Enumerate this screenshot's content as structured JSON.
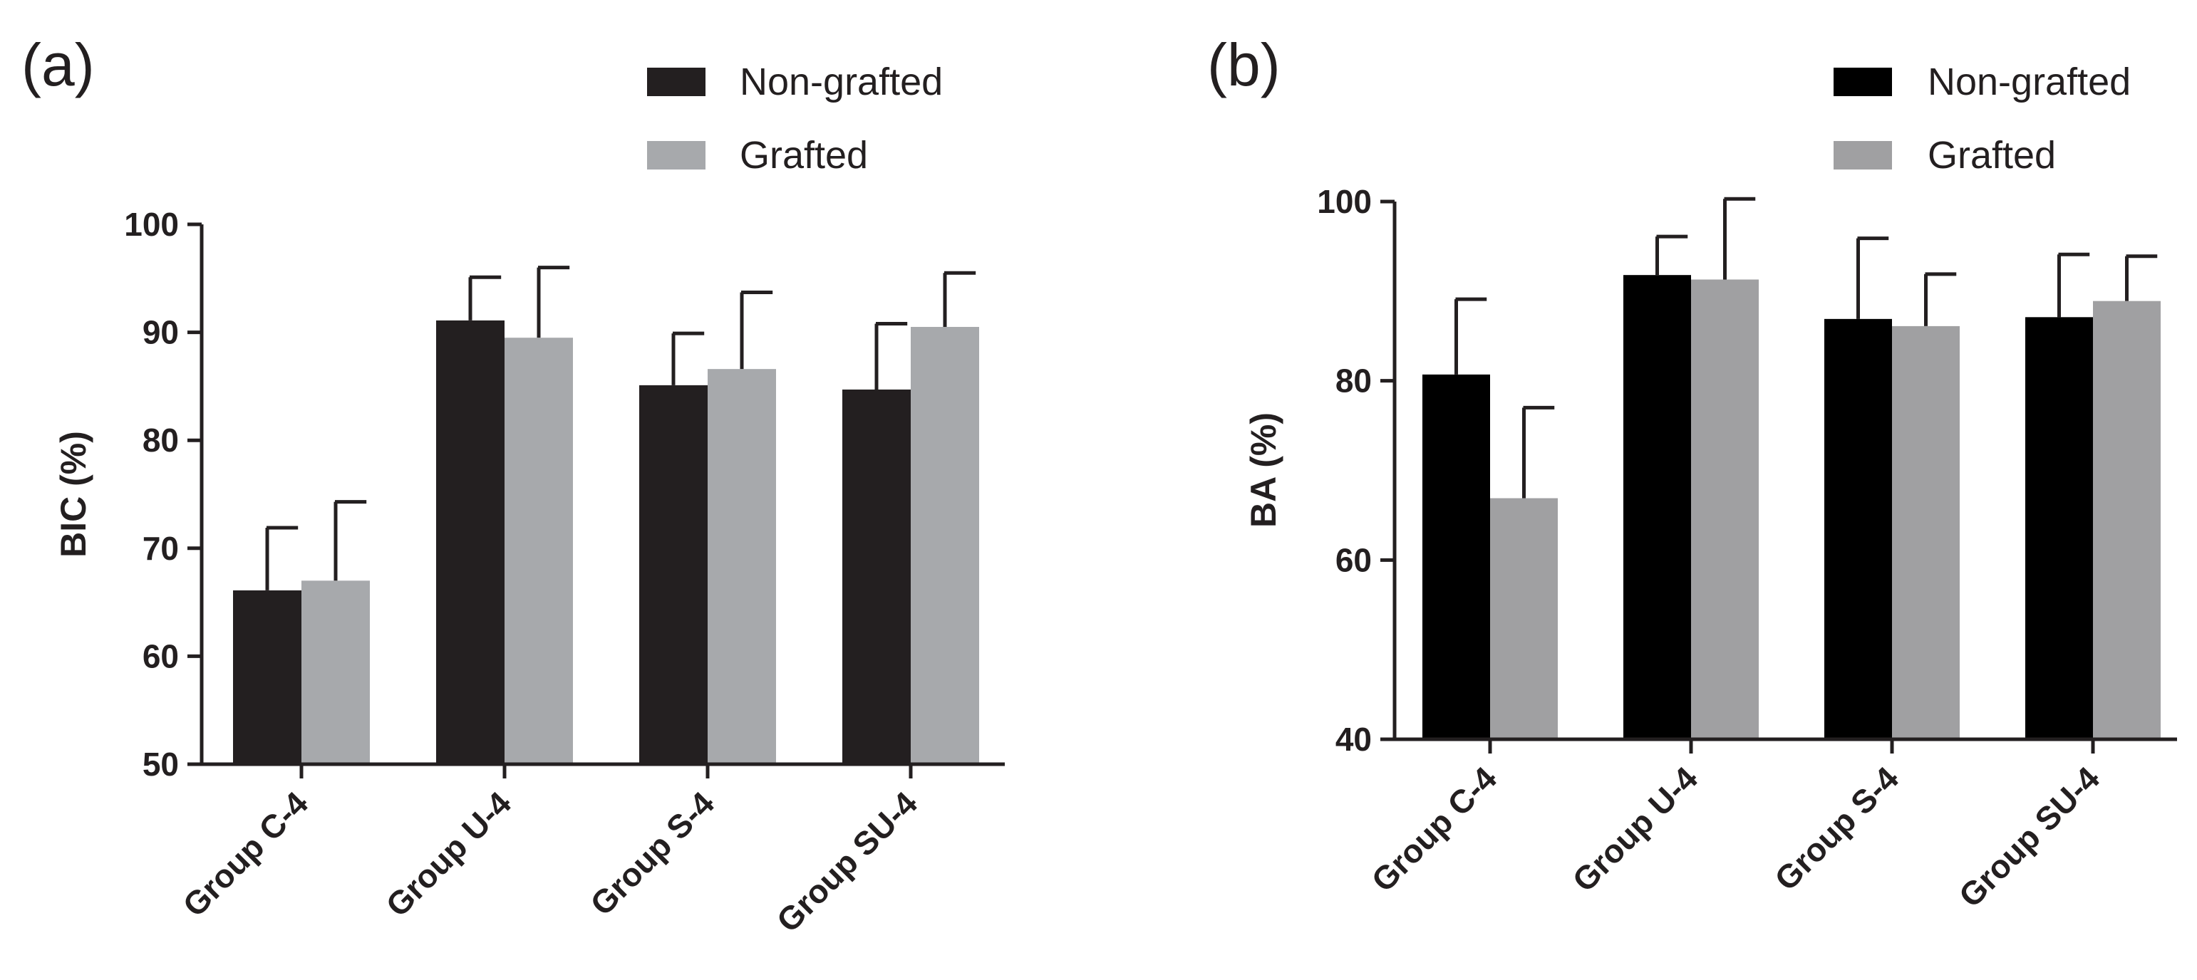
{
  "chart_data": [
    {
      "type": "bar",
      "panel_label": "(a)",
      "title": "",
      "xlabel": "",
      "ylabel": "BIC (%)",
      "ylim": [
        50,
        100
      ],
      "yticks": [
        50,
        60,
        70,
        80,
        90,
        100
      ],
      "categories": [
        "Group C-4",
        "Group U-4",
        "Group S-4",
        "Group SU-4"
      ],
      "legend_position": "top-right",
      "series": [
        {
          "name": "Non-grafted",
          "color": "#231f20",
          "values": [
            66.1,
            91.1,
            85.1,
            84.7
          ],
          "errors": [
            5.8,
            4.0,
            4.8,
            6.1
          ]
        },
        {
          "name": "Grafted",
          "color": "#a7a9ac",
          "values": [
            67.0,
            89.5,
            86.6,
            90.5
          ],
          "errors": [
            7.3,
            6.5,
            7.1,
            5.0
          ]
        }
      ]
    },
    {
      "type": "bar",
      "panel_label": "(b)",
      "title": "",
      "xlabel": "",
      "ylabel": "BA (%)",
      "ylim": [
        40,
        100
      ],
      "yticks": [
        40,
        60,
        80,
        100
      ],
      "categories": [
        "Group C-4",
        "Group U-4",
        "Group S-4",
        "Group SU-4"
      ],
      "legend_position": "top-right",
      "series": [
        {
          "name": "Non-grafted",
          "color": "#000000",
          "values": [
            80.7,
            91.8,
            86.9,
            87.1
          ],
          "errors": [
            8.4,
            4.3,
            9.0,
            7.0
          ]
        },
        {
          "name": "Grafted",
          "color": "#a0a0a2",
          "values": [
            66.9,
            91.3,
            86.1,
            88.9
          ],
          "errors": [
            10.1,
            9.0,
            5.8,
            5.0
          ]
        }
      ]
    }
  ]
}
